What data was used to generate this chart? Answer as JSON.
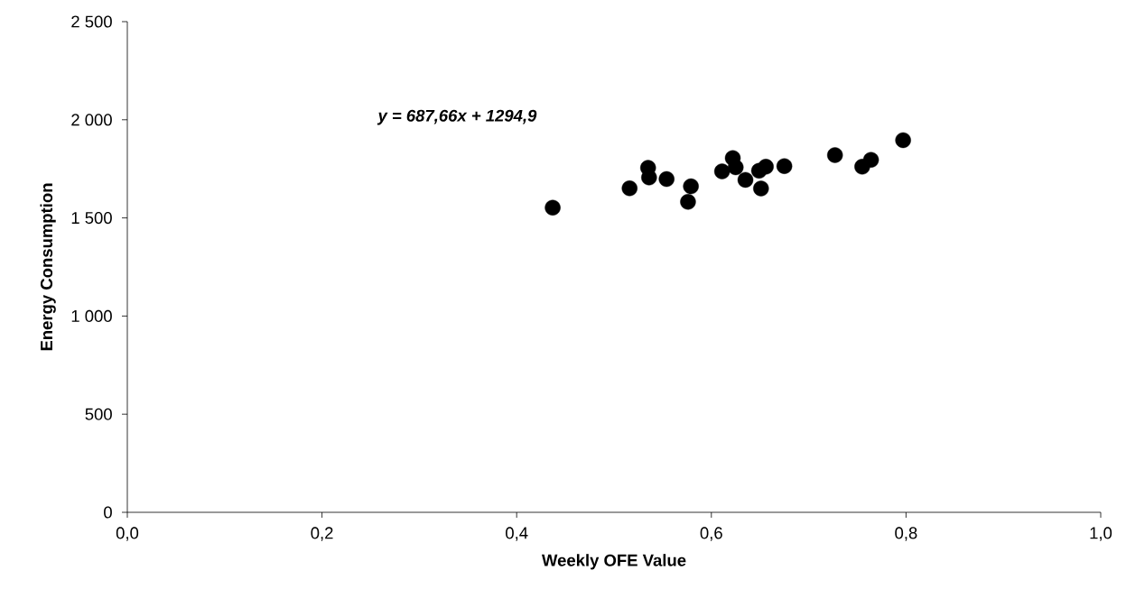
{
  "chart_data": {
    "type": "scatter",
    "xlabel": "Weekly OFE Value",
    "ylabel": "Energy Consumption",
    "annotations": [
      "y = 687,66x + 1294,9"
    ],
    "x": [
      0.437,
      0.516,
      0.535,
      0.536,
      0.554,
      0.579,
      0.576,
      0.611,
      0.622,
      0.625,
      0.635,
      0.649,
      0.656,
      0.651,
      0.675,
      0.727,
      0.755,
      0.764,
      0.797
    ],
    "series": [
      {
        "color": "#000000",
        "values": [
          1552,
          1651,
          1755,
          1706,
          1698,
          1661,
          1582,
          1737,
          1805,
          1758,
          1694,
          1740,
          1761,
          1650,
          1764,
          1820,
          1761,
          1796,
          1896
        ]
      }
    ],
    "xlim": [
      0,
      1
    ],
    "ylim": [
      0,
      2500
    ],
    "xticks": [
      {
        "value": 0,
        "label": "0,0"
      },
      {
        "value": 0.2,
        "label": "0,2"
      },
      {
        "value": 0.4,
        "label": "0,4"
      },
      {
        "value": 0.6,
        "label": "0,6"
      },
      {
        "value": 0.8,
        "label": "0,8"
      },
      {
        "value": 1,
        "label": "1,0"
      }
    ],
    "yticks": [
      0,
      500,
      {
        "value": 1000,
        "label": "1 000"
      },
      {
        "value": 1500,
        "label": "1 500"
      },
      {
        "value": 2000,
        "label": "2 000"
      },
      {
        "value": 2500,
        "label": "2 500"
      }
    ],
    "grid": false,
    "legend": false,
    "marker": "circle"
  }
}
